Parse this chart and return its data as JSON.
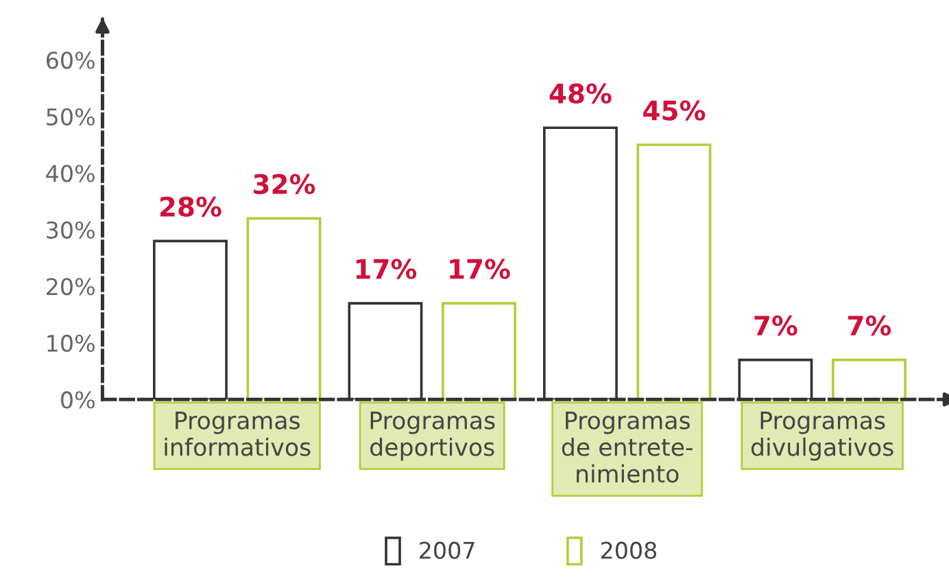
{
  "chart_data": {
    "type": "bar",
    "categories": [
      "Programas\ninformativos",
      "Programas\ndeportivos",
      "Programas\nde entrete-\nnimiento",
      "Programas\ndivulgativos"
    ],
    "series": [
      {
        "name": "2007",
        "color": "#333333",
        "values": [
          28,
          17,
          48,
          7
        ],
        "value_labels": [
          "28%",
          "17%",
          "48%",
          "7%"
        ]
      },
      {
        "name": "2008",
        "color": "#b5cc3a",
        "values": [
          32,
          17,
          45,
          7
        ],
        "value_labels": [
          "32%",
          "17%",
          "45%",
          "7%"
        ]
      }
    ],
    "ylim": [
      0,
      67
    ],
    "yticks": [
      {
        "value": 0,
        "label": "0%"
      },
      {
        "value": 10,
        "label": "10%"
      },
      {
        "value": 20,
        "label": "20%"
      },
      {
        "value": 30,
        "label": "30%"
      },
      {
        "value": 40,
        "label": "40%"
      },
      {
        "value": 50,
        "label": "50%"
      },
      {
        "value": 60,
        "label": "60%"
      }
    ],
    "grid": false,
    "legend": "bottom"
  }
}
